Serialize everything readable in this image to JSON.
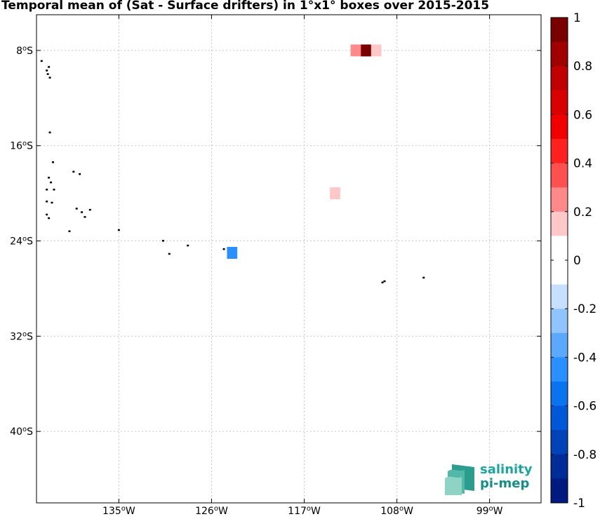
{
  "title": "Temporal mean of (Sat - Surface drifters) in 1°x1° boxes over 2015-2015",
  "map": {
    "lon_range": [
      -143,
      -94
    ],
    "lat_range": [
      -46,
      -5
    ],
    "x_ticks": [
      {
        "lon": -135,
        "label": "135",
        "sup": "o",
        "hem": "W"
      },
      {
        "lon": -126,
        "label": "126",
        "sup": "o",
        "hem": "W"
      },
      {
        "lon": -117,
        "label": "117",
        "sup": "o",
        "hem": "W"
      },
      {
        "lon": -108,
        "label": "108",
        "sup": "o",
        "hem": "W"
      },
      {
        "lon": -99,
        "label": "99",
        "sup": "o",
        "hem": "W"
      }
    ],
    "y_ticks": [
      {
        "lat": -8,
        "label": "8",
        "sup": "o",
        "hem": "S"
      },
      {
        "lat": -16,
        "label": "16",
        "sup": "o",
        "hem": "S"
      },
      {
        "lat": -24,
        "label": "24",
        "sup": "o",
        "hem": "S"
      },
      {
        "lat": -32,
        "label": "32",
        "sup": "o",
        "hem": "S"
      },
      {
        "lat": -40,
        "label": "40",
        "sup": "o",
        "hem": "S"
      }
    ],
    "grid": true,
    "boxes": [
      {
        "lon": -112,
        "lat": -8,
        "value": 0.3
      },
      {
        "lon": -111,
        "lat": -8,
        "value": 0.95
      },
      {
        "lon": -110,
        "lat": -8,
        "value": 0.2
      },
      {
        "lon": -112,
        "lat": -9,
        "value": 0.1
      },
      {
        "lon": -114,
        "lat": -20,
        "value": 0.2
      },
      {
        "lon": -124,
        "lat": -25,
        "value": -0.4
      }
    ],
    "islands": [
      {
        "lon": -142.5,
        "lat": -8.9
      },
      {
        "lon": -142.0,
        "lat": -9.7
      },
      {
        "lon": -141.9,
        "lat": -10.0
      },
      {
        "lon": -141.7,
        "lat": -10.3
      },
      {
        "lon": -141.8,
        "lat": -9.4
      },
      {
        "lon": -141.7,
        "lat": -14.9
      },
      {
        "lon": -141.4,
        "lat": -17.4
      },
      {
        "lon": -141.8,
        "lat": -18.7
      },
      {
        "lon": -141.6,
        "lat": -19.1
      },
      {
        "lon": -139.4,
        "lat": -18.2
      },
      {
        "lon": -138.8,
        "lat": -18.4
      },
      {
        "lon": -142.0,
        "lat": -19.7
      },
      {
        "lon": -141.3,
        "lat": -19.7
      },
      {
        "lon": -142.0,
        "lat": -20.7
      },
      {
        "lon": -141.5,
        "lat": -20.8
      },
      {
        "lon": -142.0,
        "lat": -21.8
      },
      {
        "lon": -141.8,
        "lat": -22.1
      },
      {
        "lon": -139.1,
        "lat": -21.3
      },
      {
        "lon": -138.6,
        "lat": -21.6
      },
      {
        "lon": -137.8,
        "lat": -21.4
      },
      {
        "lon": -138.3,
        "lat": -22.0
      },
      {
        "lon": -135.0,
        "lat": -23.1
      },
      {
        "lon": -139.8,
        "lat": -23.2
      },
      {
        "lon": -130.7,
        "lat": -24.0
      },
      {
        "lon": -128.3,
        "lat": -24.4
      },
      {
        "lon": -130.1,
        "lat": -25.1
      },
      {
        "lon": -124.8,
        "lat": -24.7
      },
      {
        "lon": -105.4,
        "lat": -27.1
      },
      {
        "lon": -109.4,
        "lat": -27.5
      },
      {
        "lon": -109.2,
        "lat": -27.4
      }
    ]
  },
  "colorbar": {
    "min": -1,
    "max": 1,
    "labels": [
      "1",
      "0.8",
      "0.6",
      "0.4",
      "0.2",
      "0",
      "-0.2",
      "-0.4",
      "-0.6",
      "-0.8",
      "-1"
    ],
    "colors": [
      "#7a0000",
      "#a00000",
      "#c00000",
      "#d80000",
      "#f00000",
      "#ff2020",
      "#ff5050",
      "#ff8888",
      "#ffc8c8",
      "#ffffff",
      "#ffffff",
      "#c8e0ff",
      "#90c4ff",
      "#5aa8ff",
      "#2a90ff",
      "#0a74f0",
      "#0058d8",
      "#0042b8",
      "#002c98",
      "#001a80"
    ]
  },
  "logo": {
    "line1": "salinity",
    "line2": "pi-mep"
  }
}
